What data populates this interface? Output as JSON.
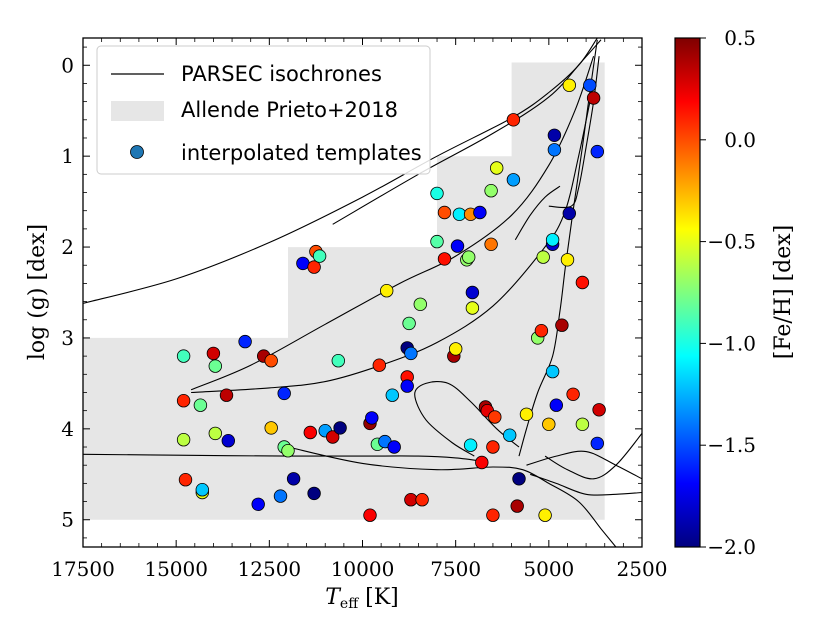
{
  "chart_data": {
    "type": "scatter",
    "xlabel": "T_eff [K]",
    "xlabel_main": "T",
    "xlabel_sub": "eff",
    "xlabel_unit": " [K]",
    "ylabel": "log (g) [dex]",
    "colorbar_label": "[Fe/H] [dex]",
    "xlim": [
      17500,
      2500
    ],
    "ylim": [
      5.3,
      -0.3
    ],
    "clim": [
      -2.0,
      0.5
    ],
    "x_ticks": [
      17500,
      15000,
      12500,
      10000,
      7500,
      5000,
      2500
    ],
    "x_tick_labels": [
      "17500",
      "15000",
      "12500",
      "10000",
      "7500",
      "5000",
      "2500"
    ],
    "y_ticks": [
      0,
      1,
      2,
      3,
      4,
      5
    ],
    "y_tick_labels": [
      "0",
      "1",
      "2",
      "3",
      "4",
      "5"
    ],
    "colorbar_ticks": [
      0.5,
      0.0,
      -0.5,
      -1.0,
      -1.5,
      -2.0
    ],
    "colorbar_tick_labels": [
      "0.5",
      "0.0",
      "−0.5",
      "−1.0",
      "−1.5",
      "−2.0"
    ],
    "colormap": [
      "#00007f",
      "#0000ff",
      "#007fff",
      "#00ffff",
      "#7fff7f",
      "#ffff00",
      "#ff7f00",
      "#ff0000",
      "#7f0000"
    ],
    "legend": {
      "position": "upper-left",
      "entries": [
        "PARSEC isochrones",
        "Allende Prieto+2018",
        "interpolated templates"
      ]
    },
    "grid_region": {
      "name": "Allende Prieto+2018",
      "color": "#e6e6e6",
      "polygon": [
        [
          17500,
          5.0
        ],
        [
          3500,
          5.0
        ],
        [
          3500,
          -0.03
        ],
        [
          6000,
          -0.03
        ],
        [
          6000,
          1.0
        ],
        [
          8000,
          1.0
        ],
        [
          8000,
          2.0
        ],
        [
          12000,
          2.0
        ],
        [
          12000,
          3.0
        ],
        [
          17500,
          3.0
        ]
      ]
    },
    "isochrones": [
      {
        "name": "upper giant branch",
        "points": [
          [
            17500,
            2.62
          ],
          [
            15000,
            2.35
          ],
          [
            12500,
            1.95
          ],
          [
            10000,
            1.45
          ],
          [
            8000,
            1.0
          ],
          [
            6000,
            0.58
          ],
          [
            5000,
            0.3
          ],
          [
            4200,
            0.0
          ],
          [
            3700,
            -0.3
          ]
        ]
      },
      {
        "name": "upper AGB",
        "points": [
          [
            10800,
            1.75
          ],
          [
            8500,
            1.2
          ],
          [
            6500,
            0.75
          ],
          [
            5000,
            0.35
          ],
          [
            4100,
            -0.05
          ],
          [
            3600,
            -0.28
          ]
        ]
      },
      {
        "name": "blue loop upper",
        "points": [
          [
            14600,
            3.57
          ],
          [
            13000,
            3.3
          ],
          [
            11000,
            2.85
          ],
          [
            9000,
            2.4
          ],
          [
            7500,
            2.1
          ],
          [
            6000,
            1.65
          ],
          [
            5000,
            1.1
          ],
          [
            4300,
            0.5
          ],
          [
            3800,
            -0.1
          ]
        ]
      },
      {
        "name": "blue loop lower",
        "points": [
          [
            14600,
            3.6
          ],
          [
            12500,
            3.55
          ],
          [
            11000,
            3.48
          ],
          [
            9500,
            3.3
          ],
          [
            8000,
            3.05
          ],
          [
            6500,
            2.65
          ],
          [
            5200,
            2.05
          ],
          [
            4600,
            1.65
          ],
          [
            4200,
            1.0
          ],
          [
            3800,
            0.2
          ]
        ]
      },
      {
        "name": "hook",
        "points": [
          [
            5000,
            1.55
          ],
          [
            4400,
            1.55
          ],
          [
            4200,
            1.35
          ],
          [
            4000,
            0.9
          ],
          [
            3800,
            0.4
          ],
          [
            3650,
            -0.1
          ]
        ]
      },
      {
        "name": "short branch",
        "points": [
          [
            5900,
            1.92
          ],
          [
            5500,
            1.65
          ],
          [
            5100,
            1.45
          ],
          [
            4700,
            1.33
          ]
        ]
      },
      {
        "name": "red giant branch",
        "points": [
          [
            5800,
            4.3
          ],
          [
            5600,
            4.0
          ],
          [
            5300,
            3.6
          ],
          [
            4900,
            3.2
          ],
          [
            4700,
            2.7
          ],
          [
            4550,
            2.2
          ],
          [
            4350,
            1.6
          ],
          [
            4100,
            0.9
          ],
          [
            3900,
            0.3
          ],
          [
            3700,
            -0.28
          ]
        ]
      },
      {
        "name": "subgiant curve",
        "points": [
          [
            7000,
            4.3
          ],
          [
            7600,
            4.15
          ],
          [
            8300,
            3.9
          ],
          [
            8600,
            3.62
          ],
          [
            8300,
            3.5
          ],
          [
            7700,
            3.5
          ],
          [
            7100,
            3.7
          ],
          [
            6400,
            4.0
          ],
          [
            5800,
            4.2
          ]
        ]
      },
      {
        "name": "main sequence top",
        "points": [
          [
            17500,
            4.28
          ],
          [
            15000,
            4.29
          ],
          [
            12000,
            4.3
          ],
          [
            10000,
            4.3
          ],
          [
            8500,
            4.3
          ],
          [
            7500,
            4.32
          ],
          [
            6700,
            4.36
          ]
        ]
      },
      {
        "name": "main sequence lower",
        "points": [
          [
            12000,
            4.2
          ],
          [
            10000,
            4.38
          ],
          [
            8000,
            4.45
          ],
          [
            6500,
            4.42
          ],
          [
            5700,
            4.45
          ],
          [
            5000,
            4.6
          ],
          [
            4200,
            4.8
          ],
          [
            3600,
            5.1
          ],
          [
            3200,
            5.3
          ]
        ]
      },
      {
        "name": "low MS branch",
        "points": [
          [
            5100,
            4.3
          ],
          [
            4500,
            4.45
          ],
          [
            3800,
            4.55
          ],
          [
            3200,
            4.4
          ],
          [
            2500,
            4.05
          ]
        ]
      },
      {
        "name": "bottom tail",
        "points": [
          [
            5500,
            4.5
          ],
          [
            4800,
            4.6
          ],
          [
            4000,
            4.72
          ],
          [
            3200,
            4.72
          ],
          [
            2500,
            4.7
          ]
        ]
      },
      {
        "name": "mid tail",
        "points": [
          [
            5600,
            4.4
          ],
          [
            4800,
            4.3
          ],
          [
            4000,
            4.25
          ],
          [
            3200,
            4.4
          ],
          [
            2500,
            4.55
          ]
        ]
      }
    ],
    "points": [
      {
        "x": 14800,
        "y": 3.2,
        "feh": -0.9
      },
      {
        "x": 14800,
        "y": 3.69,
        "feh": 0.1
      },
      {
        "x": 14800,
        "y": 4.12,
        "feh": -0.6
      },
      {
        "x": 14750,
        "y": 4.56,
        "feh": 0.1
      },
      {
        "x": 14350,
        "y": 3.74,
        "feh": -0.8
      },
      {
        "x": 14300,
        "y": 4.7,
        "feh": -0.5
      },
      {
        "x": 14300,
        "y": 4.67,
        "feh": -1.2
      },
      {
        "x": 14000,
        "y": 3.17,
        "feh": 0.3
      },
      {
        "x": 13950,
        "y": 3.31,
        "feh": -0.8
      },
      {
        "x": 13950,
        "y": 4.05,
        "feh": -0.6
      },
      {
        "x": 13650,
        "y": 3.63,
        "feh": 0.35
      },
      {
        "x": 13600,
        "y": 4.13,
        "feh": -1.8
      },
      {
        "x": 13150,
        "y": 3.04,
        "feh": -1.6
      },
      {
        "x": 12800,
        "y": 4.83,
        "feh": -1.7
      },
      {
        "x": 12650,
        "y": 3.2,
        "feh": 0.4
      },
      {
        "x": 12450,
        "y": 3.25,
        "feh": 0.0
      },
      {
        "x": 12450,
        "y": 3.99,
        "feh": -0.3
      },
      {
        "x": 12200,
        "y": 4.74,
        "feh": -1.4
      },
      {
        "x": 12100,
        "y": 3.61,
        "feh": -1.6
      },
      {
        "x": 12100,
        "y": 4.2,
        "feh": -0.8
      },
      {
        "x": 12000,
        "y": 4.24,
        "feh": -0.7
      },
      {
        "x": 11850,
        "y": 4.55,
        "feh": -1.9
      },
      {
        "x": 11600,
        "y": 2.18,
        "feh": -1.7
      },
      {
        "x": 11400,
        "y": 4.04,
        "feh": 0.2
      },
      {
        "x": 11300,
        "y": 4.71,
        "feh": -2.0
      },
      {
        "x": 11300,
        "y": 2.22,
        "feh": 0.1
      },
      {
        "x": 11250,
        "y": 2.05,
        "feh": 0.0
      },
      {
        "x": 11150,
        "y": 2.1,
        "feh": -0.9
      },
      {
        "x": 11000,
        "y": 4.02,
        "feh": -1.3
      },
      {
        "x": 10800,
        "y": 4.09,
        "feh": 0.3
      },
      {
        "x": 10650,
        "y": 3.25,
        "feh": -0.9
      },
      {
        "x": 10600,
        "y": 3.99,
        "feh": -2.0
      },
      {
        "x": 9800,
        "y": 3.94,
        "feh": 0.45
      },
      {
        "x": 9750,
        "y": 3.88,
        "feh": -1.7
      },
      {
        "x": 9800,
        "y": 4.95,
        "feh": 0.2
      },
      {
        "x": 9600,
        "y": 4.17,
        "feh": -0.8
      },
      {
        "x": 9550,
        "y": 3.3,
        "feh": 0.1
      },
      {
        "x": 9400,
        "y": 4.14,
        "feh": -1.4
      },
      {
        "x": 9350,
        "y": 2.48,
        "feh": -0.4
      },
      {
        "x": 9200,
        "y": 3.63,
        "feh": -1.2
      },
      {
        "x": 9150,
        "y": 4.2,
        "feh": -1.7
      },
      {
        "x": 8800,
        "y": 3.11,
        "feh": -2.0
      },
      {
        "x": 8800,
        "y": 3.43,
        "feh": 0.15
      },
      {
        "x": 8800,
        "y": 3.53,
        "feh": -1.7
      },
      {
        "x": 8750,
        "y": 2.84,
        "feh": -0.8
      },
      {
        "x": 8700,
        "y": 3.17,
        "feh": -1.4
      },
      {
        "x": 8700,
        "y": 4.78,
        "feh": 0.3
      },
      {
        "x": 8400,
        "y": 4.78,
        "feh": 0.1
      },
      {
        "x": 8450,
        "y": 2.63,
        "feh": -0.7
      },
      {
        "x": 8000,
        "y": 1.41,
        "feh": -1.0
      },
      {
        "x": 8000,
        "y": 1.94,
        "feh": -0.85
      },
      {
        "x": 7800,
        "y": 1.62,
        "feh": 0.0
      },
      {
        "x": 7800,
        "y": 2.13,
        "feh": 0.15
      },
      {
        "x": 7550,
        "y": 3.2,
        "feh": 0.4
      },
      {
        "x": 7500,
        "y": 3.12,
        "feh": -0.4
      },
      {
        "x": 7450,
        "y": 1.99,
        "feh": -1.7
      },
      {
        "x": 7400,
        "y": 1.64,
        "feh": -1.1
      },
      {
        "x": 7200,
        "y": 2.14,
        "feh": -0.7
      },
      {
        "x": 7150,
        "y": 2.11,
        "feh": -0.7
      },
      {
        "x": 7050,
        "y": 2.5,
        "feh": -1.8
      },
      {
        "x": 7050,
        "y": 2.67,
        "feh": -0.5
      },
      {
        "x": 7100,
        "y": 1.64,
        "feh": -0.15
      },
      {
        "x": 6850,
        "y": 1.62,
        "feh": -1.7
      },
      {
        "x": 7100,
        "y": 4.18,
        "feh": -1.1
      },
      {
        "x": 6800,
        "y": 4.37,
        "feh": 0.2
      },
      {
        "x": 6700,
        "y": 3.76,
        "feh": 0.4
      },
      {
        "x": 6650,
        "y": 3.8,
        "feh": 0.25
      },
      {
        "x": 6550,
        "y": 1.38,
        "feh": -0.7
      },
      {
        "x": 6550,
        "y": 1.97,
        "feh": -0.1
      },
      {
        "x": 6450,
        "y": 3.87,
        "feh": 0.05
      },
      {
        "x": 6400,
        "y": 1.13,
        "feh": -0.5
      },
      {
        "x": 6500,
        "y": 4.2,
        "feh": 0.1
      },
      {
        "x": 6500,
        "y": 4.95,
        "feh": 0.1
      },
      {
        "x": 6050,
        "y": 4.07,
        "feh": -1.2
      },
      {
        "x": 5950,
        "y": 1.26,
        "feh": -1.3
      },
      {
        "x": 5950,
        "y": 0.6,
        "feh": 0.1
      },
      {
        "x": 5850,
        "y": 4.85,
        "feh": 0.4
      },
      {
        "x": 5800,
        "y": 4.55,
        "feh": -2.0
      },
      {
        "x": 5600,
        "y": 3.84,
        "feh": -0.4
      },
      {
        "x": 5300,
        "y": 3.0,
        "feh": -0.7
      },
      {
        "x": 5200,
        "y": 2.92,
        "feh": 0.1
      },
      {
        "x": 5150,
        "y": 2.11,
        "feh": -0.6
      },
      {
        "x": 5100,
        "y": 4.95,
        "feh": -0.4
      },
      {
        "x": 5000,
        "y": 3.95,
        "feh": -0.3
      },
      {
        "x": 4900,
        "y": 1.97,
        "feh": -1.8
      },
      {
        "x": 4900,
        "y": 1.92,
        "feh": -1.1
      },
      {
        "x": 4900,
        "y": 3.37,
        "feh": -1.2
      },
      {
        "x": 4850,
        "y": 0.93,
        "feh": -1.4
      },
      {
        "x": 4850,
        "y": 0.77,
        "feh": -1.9
      },
      {
        "x": 4800,
        "y": 3.74,
        "feh": -1.7
      },
      {
        "x": 4650,
        "y": 2.86,
        "feh": 0.4
      },
      {
        "x": 4500,
        "y": 2.14,
        "feh": -0.4
      },
      {
        "x": 4450,
        "y": 1.63,
        "feh": -1.9
      },
      {
        "x": 4450,
        "y": 0.22,
        "feh": -0.4
      },
      {
        "x": 4350,
        "y": 3.62,
        "feh": 0.1
      },
      {
        "x": 4100,
        "y": 2.39,
        "feh": 0.15
      },
      {
        "x": 4100,
        "y": 3.95,
        "feh": -0.6
      },
      {
        "x": 3900,
        "y": 0.22,
        "feh": -1.5
      },
      {
        "x": 3800,
        "y": 0.36,
        "feh": 0.35
      },
      {
        "x": 3700,
        "y": 0.95,
        "feh": -1.6
      },
      {
        "x": 3700,
        "y": 4.16,
        "feh": -1.6
      },
      {
        "x": 3650,
        "y": 3.79,
        "feh": 0.3
      }
    ]
  }
}
